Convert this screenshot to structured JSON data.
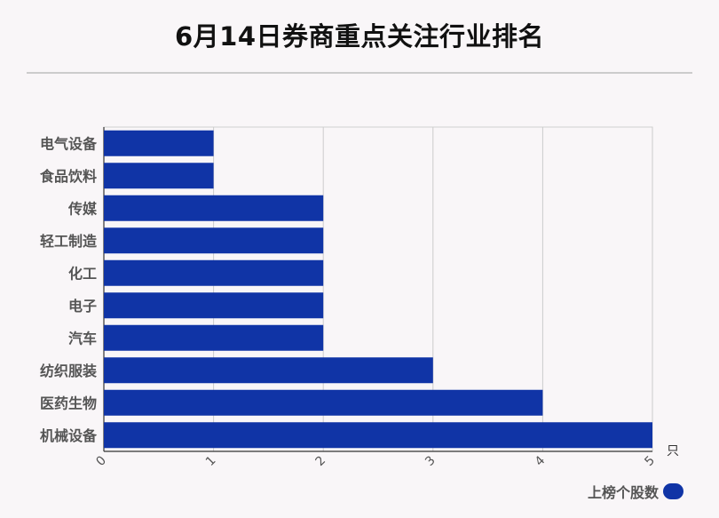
{
  "chart_data": {
    "type": "bar",
    "orientation": "horizontal",
    "title": "6月14日券商重点关注行业排名",
    "categories": [
      "电气设备",
      "食品饮料",
      "传媒",
      "轻工制造",
      "化工",
      "电子",
      "汽车",
      "纺织服装",
      "医药生物",
      "机械设备"
    ],
    "series": [
      {
        "name": "上榜个股数",
        "values": [
          1,
          1,
          2,
          2,
          2,
          2,
          2,
          3,
          4,
          5
        ],
        "color": "#1034a6"
      }
    ],
    "x_ticks": [
      "0",
      "1",
      "2",
      "3",
      "4",
      "5"
    ],
    "xlim": [
      0,
      5
    ],
    "x_unit": "只",
    "grid": true,
    "legend_position": "bottom-right"
  }
}
